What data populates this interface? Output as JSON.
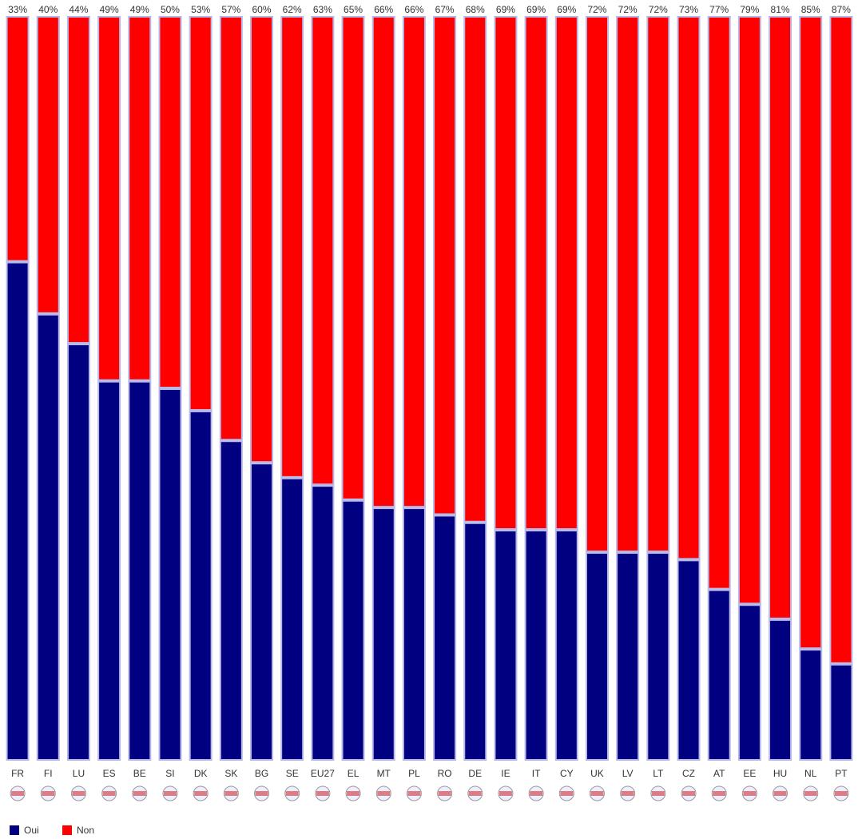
{
  "chart_data": {
    "type": "stacked_bar",
    "categories": [
      "FR",
      "FI",
      "LU",
      "ES",
      "BE",
      "SI",
      "DK",
      "SK",
      "BG",
      "SE",
      "EU27",
      "EL",
      "MT",
      "PL",
      "RO",
      "DE",
      "IE",
      "IT",
      "CY",
      "UK",
      "LV",
      "LT",
      "CZ",
      "AT",
      "EE",
      "HU",
      "NL",
      "PT"
    ],
    "series": [
      {
        "name": "Oui",
        "color": "#000080",
        "values": [
          67,
          60,
          56,
          51,
          51,
          50,
          47,
          43,
          40,
          38,
          37,
          35,
          34,
          34,
          33,
          32,
          31,
          31,
          31,
          28,
          28,
          28,
          27,
          23,
          21,
          19,
          15,
          13
        ],
        "value_labels": [
          "67%",
          "60%",
          "56%",
          "51%",
          "51%",
          "50%",
          "47%",
          "43%",
          "40%",
          "38%",
          "37%",
          "35%",
          "34%",
          "34%",
          "33%",
          "32%",
          "31%",
          "31%",
          "31%",
          "28%",
          "28%",
          "28%",
          "27%",
          "23%",
          "21%",
          "19%",
          "15%",
          "13%"
        ]
      },
      {
        "name": "Non",
        "color": "#ff0000",
        "values": [
          33,
          40,
          44,
          49,
          49,
          50,
          53,
          57,
          60,
          62,
          63,
          65,
          66,
          66,
          67,
          68,
          69,
          69,
          69,
          72,
          72,
          72,
          73,
          77,
          79,
          81,
          85,
          87
        ],
        "value_labels": [
          "33%",
          "40%",
          "44%",
          "49%",
          "49%",
          "50%",
          "53%",
          "57%",
          "60%",
          "62%",
          "63%",
          "65%",
          "66%",
          "66%",
          "67%",
          "68%",
          "69%",
          "69%",
          "69%",
          "72%",
          "72%",
          "72%",
          "73%",
          "77%",
          "79%",
          "81%",
          "85%",
          "87%"
        ]
      }
    ],
    "legend": "bottom-left"
  }
}
